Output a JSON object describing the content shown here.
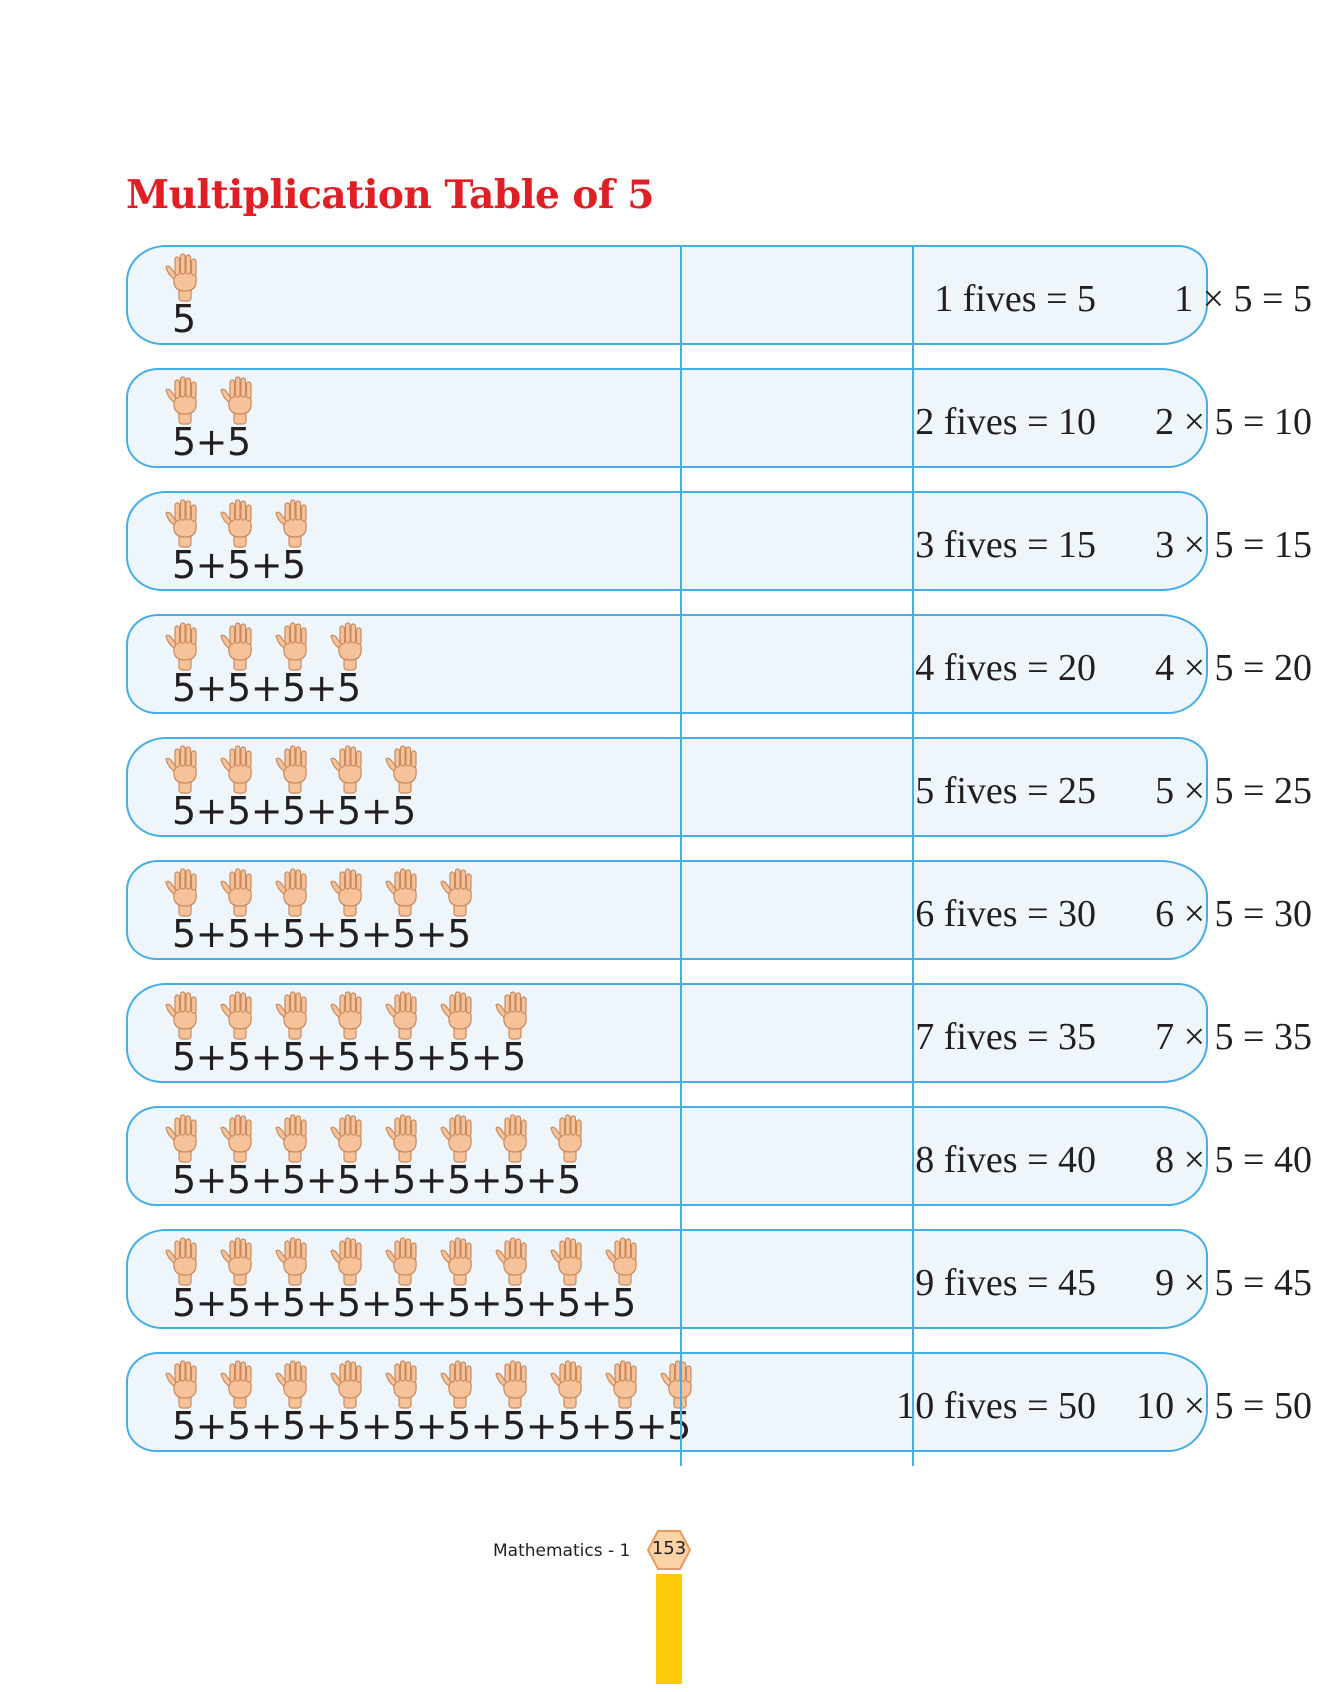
{
  "page": {
    "title": "Multiplication Table of 5",
    "footer_text": "Mathematics - 1",
    "page_number": "153"
  },
  "table": {
    "rows": [
      {
        "hands": 1,
        "sum": "5",
        "words": "1 fives = 5",
        "mult": "1 × 5 = 5"
      },
      {
        "hands": 2,
        "sum": "5+5",
        "words": "2 fives = 10",
        "mult": "2 × 5 = 10"
      },
      {
        "hands": 3,
        "sum": "5+5+5",
        "words": "3 fives = 15",
        "mult": "3 × 5 = 15"
      },
      {
        "hands": 4,
        "sum": "5+5+5+5",
        "words": "4 fives = 20",
        "mult": "4 × 5 = 20"
      },
      {
        "hands": 5,
        "sum": "5+5+5+5+5",
        "words": "5 fives = 25",
        "mult": "5 × 5 = 25"
      },
      {
        "hands": 6,
        "sum": "5+5+5+5+5+5",
        "words": "6 fives = 30",
        "mult": "6 × 5 = 30"
      },
      {
        "hands": 7,
        "sum": "5+5+5+5+5+5+5",
        "words": "7 fives = 35",
        "mult": "7 × 5 = 35"
      },
      {
        "hands": 8,
        "sum": "5+5+5+5+5+5+5+5",
        "words": "8 fives = 40",
        "mult": "8 × 5 = 40"
      },
      {
        "hands": 9,
        "sum": "5+5+5+5+5+5+5+5+5",
        "words": "9 fives = 45",
        "mult": "9 × 5 = 45"
      },
      {
        "hands": 10,
        "sum": "5+5+5+5+5+5+5+5+5+5",
        "words": "10 fives = 50",
        "mult": "10 × 5 = 50"
      }
    ]
  },
  "colors": {
    "title": "#e01f25",
    "border": "#46aee4",
    "row_fill": "#eef6fc",
    "hand": "#f6c29a",
    "badge": "#fbd3a6",
    "pencil": "#fbcb0a"
  },
  "icons": {
    "hand": "open-hand-icon",
    "page_badge": "hexagon-badge-icon"
  }
}
